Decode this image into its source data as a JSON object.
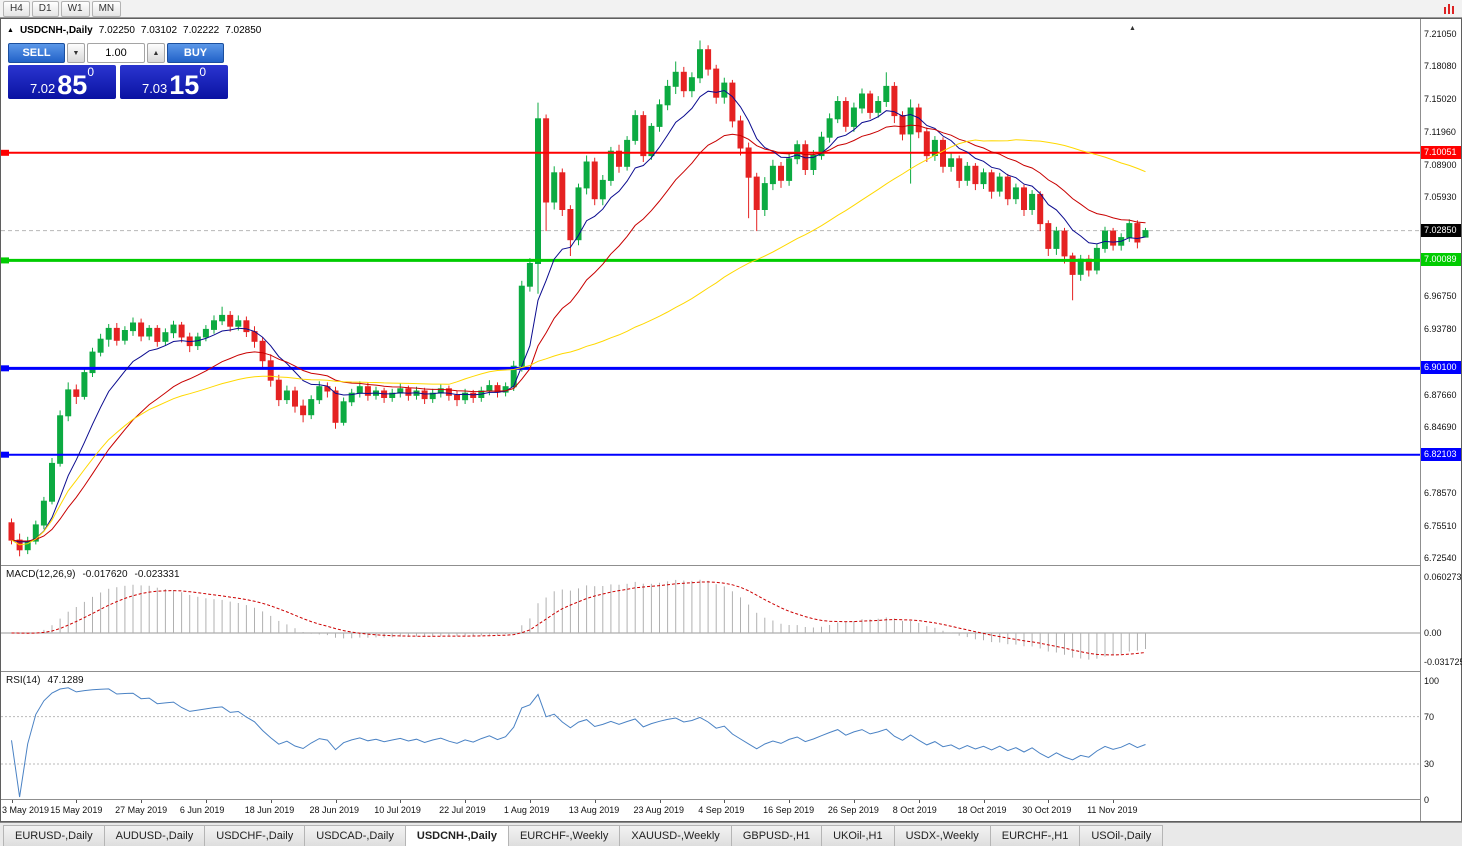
{
  "toolbar": {
    "timeframes": [
      "H4",
      "D1",
      "W1",
      "MN"
    ]
  },
  "header": {
    "symbol": "USDCNH-,Daily",
    "open": "7.02250",
    "high": "7.03102",
    "low": "7.02222",
    "close": "7.02850"
  },
  "trade_panel": {
    "sell": "SELL",
    "buy": "BUY",
    "volume": "1.00",
    "sell_big": "7.02",
    "sell_pips": "85",
    "sell_sup": "0",
    "buy_big": "7.03",
    "buy_pips": "15",
    "buy_sup": "0"
  },
  "indicator_labels": {
    "macd_name": "MACD(12,26,9)",
    "macd_main": "-0.017620",
    "macd_signal": "-0.023331",
    "rsi_name": "RSI(14)",
    "rsi_value": "47.1289"
  },
  "tabs": {
    "active": "USDCNH-,Daily",
    "items": [
      "EURUSD-,Daily",
      "AUDUSD-,Daily",
      "USDCHF-,Daily",
      "USDCAD-,Daily",
      "USDCNH-,Daily",
      "EURCHF-,Weekly",
      "XAUUSD-,Weekly",
      "GBPUSD-,H1",
      "UKOil-,H1",
      "USDX-,Weekly",
      "EURCHF-,H1",
      "USOil-,Daily"
    ]
  },
  "chart_data": {
    "type": "candlestick",
    "title": "USDCNH-,Daily",
    "ylim": [
      6.7254,
      7.2105
    ],
    "y_ticks": [
      "7.21050",
      "7.18080",
      "7.15020",
      "7.11960",
      "7.08900",
      "7.05930",
      "6.96750",
      "6.93780",
      "6.87660",
      "6.84690",
      "6.78570",
      "6.75510",
      "6.72540"
    ],
    "x_labels": [
      "3 May 2019",
      "15 May 2019",
      "27 May 2019",
      "6 Jun 2019",
      "18 Jun 2019",
      "28 Jun 2019",
      "10 Jul 2019",
      "22 Jul 2019",
      "1 Aug 2019",
      "13 Aug 2019",
      "23 Aug 2019",
      "4 Sep 2019",
      "16 Sep 2019",
      "26 Sep 2019",
      "8 Oct 2019",
      "18 Oct 2019",
      "30 Oct 2019",
      "11 Nov 2019"
    ],
    "bars_per_label": 8,
    "candle_up_color": "#0caa41",
    "candle_down_color": "#e52222",
    "candles": [
      [
        6.758,
        6.762,
        6.738,
        6.742
      ],
      [
        6.742,
        6.748,
        6.727,
        6.733
      ],
      [
        6.733,
        6.745,
        6.729,
        6.741
      ],
      [
        6.741,
        6.76,
        6.738,
        6.756
      ],
      [
        6.756,
        6.782,
        6.752,
        6.778
      ],
      [
        6.778,
        6.818,
        6.775,
        6.813
      ],
      [
        6.813,
        6.862,
        6.81,
        6.857
      ],
      [
        6.857,
        6.888,
        6.852,
        6.881
      ],
      [
        6.881,
        6.886,
        6.868,
        6.875
      ],
      [
        6.875,
        6.902,
        6.872,
        6.897
      ],
      [
        6.897,
        6.92,
        6.893,
        6.916
      ],
      [
        6.916,
        6.933,
        6.912,
        6.928
      ],
      [
        6.928,
        6.942,
        6.921,
        6.938
      ],
      [
        6.938,
        6.943,
        6.922,
        6.927
      ],
      [
        6.927,
        6.94,
        6.923,
        6.936
      ],
      [
        6.936,
        6.948,
        6.931,
        6.943
      ],
      [
        6.943,
        6.947,
        6.926,
        6.931
      ],
      [
        6.931,
        6.941,
        6.927,
        6.938
      ],
      [
        6.938,
        6.941,
        6.921,
        6.926
      ],
      [
        6.926,
        6.938,
        6.922,
        6.934
      ],
      [
        6.934,
        6.945,
        6.929,
        6.941
      ],
      [
        6.941,
        6.944,
        6.925,
        6.93
      ],
      [
        6.93,
        6.934,
        6.916,
        6.922
      ],
      [
        6.922,
        6.934,
        6.918,
        6.93
      ],
      [
        6.93,
        6.941,
        6.926,
        6.937
      ],
      [
        6.937,
        6.95,
        6.933,
        6.945
      ],
      [
        6.945,
        6.958,
        6.941,
        6.95
      ],
      [
        6.95,
        6.954,
        6.935,
        6.94
      ],
      [
        6.94,
        6.95,
        6.936,
        6.945
      ],
      [
        6.945,
        6.949,
        6.93,
        6.935
      ],
      [
        6.935,
        6.94,
        6.92,
        6.926
      ],
      [
        6.926,
        6.93,
        6.902,
        6.908
      ],
      [
        6.908,
        6.914,
        6.884,
        6.89
      ],
      [
        6.89,
        6.895,
        6.866,
        6.872
      ],
      [
        6.872,
        6.885,
        6.868,
        6.88
      ],
      [
        6.88,
        6.884,
        6.86,
        6.866
      ],
      [
        6.866,
        6.872,
        6.851,
        6.858
      ],
      [
        6.858,
        6.876,
        6.854,
        6.872
      ],
      [
        6.872,
        6.889,
        6.868,
        6.884
      ],
      [
        6.884,
        6.888,
        6.874,
        6.88
      ],
      [
        6.88,
        6.884,
        6.845,
        6.851
      ],
      [
        6.851,
        6.874,
        6.848,
        6.87
      ],
      [
        6.87,
        6.882,
        6.866,
        6.878
      ],
      [
        6.878,
        6.889,
        6.874,
        6.884
      ],
      [
        6.884,
        6.888,
        6.871,
        6.876
      ],
      [
        6.876,
        6.884,
        6.872,
        6.88
      ],
      [
        6.88,
        6.883,
        6.869,
        6.874
      ],
      [
        6.874,
        6.882,
        6.87,
        6.878
      ],
      [
        6.878,
        6.887,
        6.874,
        6.882
      ],
      [
        6.882,
        6.885,
        6.871,
        6.876
      ],
      [
        6.876,
        6.884,
        6.872,
        6.88
      ],
      [
        6.88,
        6.883,
        6.868,
        6.873
      ],
      [
        6.873,
        6.882,
        6.869,
        6.878
      ],
      [
        6.878,
        6.886,
        6.874,
        6.882
      ],
      [
        6.882,
        6.885,
        6.871,
        6.876
      ],
      [
        6.876,
        6.88,
        6.866,
        6.872
      ],
      [
        6.872,
        6.882,
        6.868,
        6.878
      ],
      [
        6.878,
        6.881,
        6.869,
        6.874
      ],
      [
        6.874,
        6.884,
        6.87,
        6.88
      ],
      [
        6.88,
        6.89,
        6.876,
        6.885
      ],
      [
        6.885,
        6.888,
        6.874,
        6.879
      ],
      [
        6.879,
        6.888,
        6.875,
        6.884
      ],
      [
        6.884,
        6.908,
        6.88,
        6.903
      ],
      [
        6.903,
        6.982,
        6.898,
        6.977
      ],
      [
        6.977,
        7.003,
        6.972,
        6.998
      ],
      [
        6.998,
        7.147,
        6.97,
        7.132
      ],
      [
        7.132,
        7.136,
        7.028,
        7.055
      ],
      [
        7.055,
        7.088,
        7.048,
        7.082
      ],
      [
        7.082,
        7.086,
        7.042,
        7.048
      ],
      [
        7.048,
        7.052,
        7.005,
        7.02
      ],
      [
        7.02,
        7.072,
        7.015,
        7.068
      ],
      [
        7.068,
        7.098,
        7.062,
        7.092
      ],
      [
        7.092,
        7.096,
        7.052,
        7.058
      ],
      [
        7.058,
        7.08,
        7.052,
        7.075
      ],
      [
        7.075,
        7.106,
        7.07,
        7.102
      ],
      [
        7.102,
        7.108,
        7.082,
        7.088
      ],
      [
        7.088,
        7.116,
        7.084,
        7.112
      ],
      [
        7.112,
        7.14,
        7.108,
        7.135
      ],
      [
        7.135,
        7.139,
        7.092,
        7.098
      ],
      [
        7.098,
        7.128,
        7.094,
        7.125
      ],
      [
        7.125,
        7.15,
        7.12,
        7.145
      ],
      [
        7.145,
        7.168,
        7.14,
        7.162
      ],
      [
        7.162,
        7.185,
        7.155,
        7.175
      ],
      [
        7.175,
        7.18,
        7.152,
        7.158
      ],
      [
        7.158,
        7.175,
        7.152,
        7.17
      ],
      [
        7.17,
        7.2045,
        7.165,
        7.196
      ],
      [
        7.196,
        7.2,
        7.172,
        7.178
      ],
      [
        7.178,
        7.182,
        7.146,
        7.152
      ],
      [
        7.152,
        7.17,
        7.146,
        7.165
      ],
      [
        7.165,
        7.168,
        7.124,
        7.13
      ],
      [
        7.13,
        7.135,
        7.098,
        7.105
      ],
      [
        7.105,
        7.11,
        7.04,
        7.078
      ],
      [
        7.078,
        7.082,
        7.028,
        7.048
      ],
      [
        7.048,
        7.078,
        7.042,
        7.072
      ],
      [
        7.072,
        7.094,
        7.066,
        7.088
      ],
      [
        7.088,
        7.092,
        7.068,
        7.075
      ],
      [
        7.075,
        7.1,
        7.07,
        7.095
      ],
      [
        7.095,
        7.112,
        7.09,
        7.108
      ],
      [
        7.108,
        7.112,
        7.08,
        7.085
      ],
      [
        7.085,
        7.103,
        7.08,
        7.098
      ],
      [
        7.098,
        7.12,
        7.094,
        7.115
      ],
      [
        7.115,
        7.137,
        7.11,
        7.132
      ],
      [
        7.132,
        7.153,
        7.128,
        7.148
      ],
      [
        7.148,
        7.152,
        7.12,
        7.125
      ],
      [
        7.125,
        7.147,
        7.12,
        7.142
      ],
      [
        7.142,
        7.16,
        7.137,
        7.155
      ],
      [
        7.155,
        7.158,
        7.132,
        7.138
      ],
      [
        7.138,
        7.153,
        7.133,
        7.148
      ],
      [
        7.148,
        7.175,
        7.143,
        7.162
      ],
      [
        7.162,
        7.166,
        7.128,
        7.135
      ],
      [
        7.135,
        7.139,
        7.112,
        7.118
      ],
      [
        7.118,
        7.15,
        7.072,
        7.142
      ],
      [
        7.142,
        7.146,
        7.114,
        7.12
      ],
      [
        7.12,
        7.124,
        7.092,
        7.098
      ],
      [
        7.098,
        7.116,
        7.093,
        7.112
      ],
      [
        7.112,
        7.115,
        7.082,
        7.088
      ],
      [
        7.088,
        7.1,
        7.083,
        7.095
      ],
      [
        7.095,
        7.098,
        7.068,
        7.075
      ],
      [
        7.075,
        7.092,
        7.07,
        7.088
      ],
      [
        7.088,
        7.091,
        7.066,
        7.072
      ],
      [
        7.072,
        7.086,
        7.067,
        7.082
      ],
      [
        7.082,
        7.085,
        7.058,
        7.065
      ],
      [
        7.065,
        7.082,
        7.06,
        7.078
      ],
      [
        7.078,
        7.081,
        7.052,
        7.058
      ],
      [
        7.058,
        7.072,
        7.053,
        7.068
      ],
      [
        7.068,
        7.071,
        7.042,
        7.048
      ],
      [
        7.048,
        7.066,
        7.043,
        7.062
      ],
      [
        7.062,
        7.065,
        7.028,
        7.035
      ],
      [
        7.035,
        7.038,
        7.005,
        7.012
      ],
      [
        7.012,
        7.032,
        7.006,
        7.028
      ],
      [
        7.028,
        7.031,
        6.998,
        7.005
      ],
      [
        7.005,
        7.008,
        6.964,
        6.988
      ],
      [
        6.988,
        7.006,
        6.982,
        7.002
      ],
      [
        7.002,
        7.006,
        6.986,
        6.992
      ],
      [
        6.992,
        7.016,
        6.988,
        7.012
      ],
      [
        7.012,
        7.032,
        7.008,
        7.028
      ],
      [
        7.028,
        7.031,
        7.01,
        7.015
      ],
      [
        7.015,
        7.026,
        7.01,
        7.022
      ],
      [
        7.022,
        7.039,
        7.018,
        7.035
      ],
      [
        7.035,
        7.038,
        7.012,
        7.018
      ],
      [
        7.0225,
        7.03102,
        7.02222,
        7.0285
      ]
    ],
    "moving_averages": [
      {
        "type": "ema",
        "period": 9,
        "color": "#0b0b8f"
      },
      {
        "type": "ema",
        "period": 21,
        "color": "#c80000"
      },
      {
        "type": "sma",
        "period": 55,
        "color": "#ffd800"
      }
    ],
    "hlines": [
      {
        "price": 7.10051,
        "label": "7.10051",
        "color": "#ff0000",
        "width": 2
      },
      {
        "price": 7.00089,
        "label": "7.00089",
        "color": "#00cc00",
        "width": 3
      },
      {
        "price": 6.901,
        "label": "6.90100",
        "color": "#0000ff",
        "width": 3
      },
      {
        "price": 6.82103,
        "label": "6.82103",
        "color": "#0000ff",
        "width": 2
      }
    ],
    "price_marker": {
      "price": 7.0285,
      "label": "7.02850",
      "bg": "#000000"
    },
    "macd": {
      "fast": 12,
      "slow": 26,
      "signal": 9,
      "hist_color": "#b0b0b0",
      "signal_color": "#cc0000",
      "ticks": [
        {
          "v": 0.060273,
          "t": "0.060273"
        },
        {
          "v": 0,
          "t": "0.00"
        },
        {
          "v": -0.031725,
          "t": "-0.031725"
        }
      ]
    },
    "rsi": {
      "period": 14,
      "color": "#4a82c4",
      "levels": [
        70,
        30
      ],
      "ticks": [
        {
          "v": 100,
          "t": "100"
        },
        {
          "v": 70,
          "t": "70"
        },
        {
          "v": 30,
          "t": "30"
        },
        {
          "v": 0,
          "t": "0"
        }
      ]
    }
  }
}
